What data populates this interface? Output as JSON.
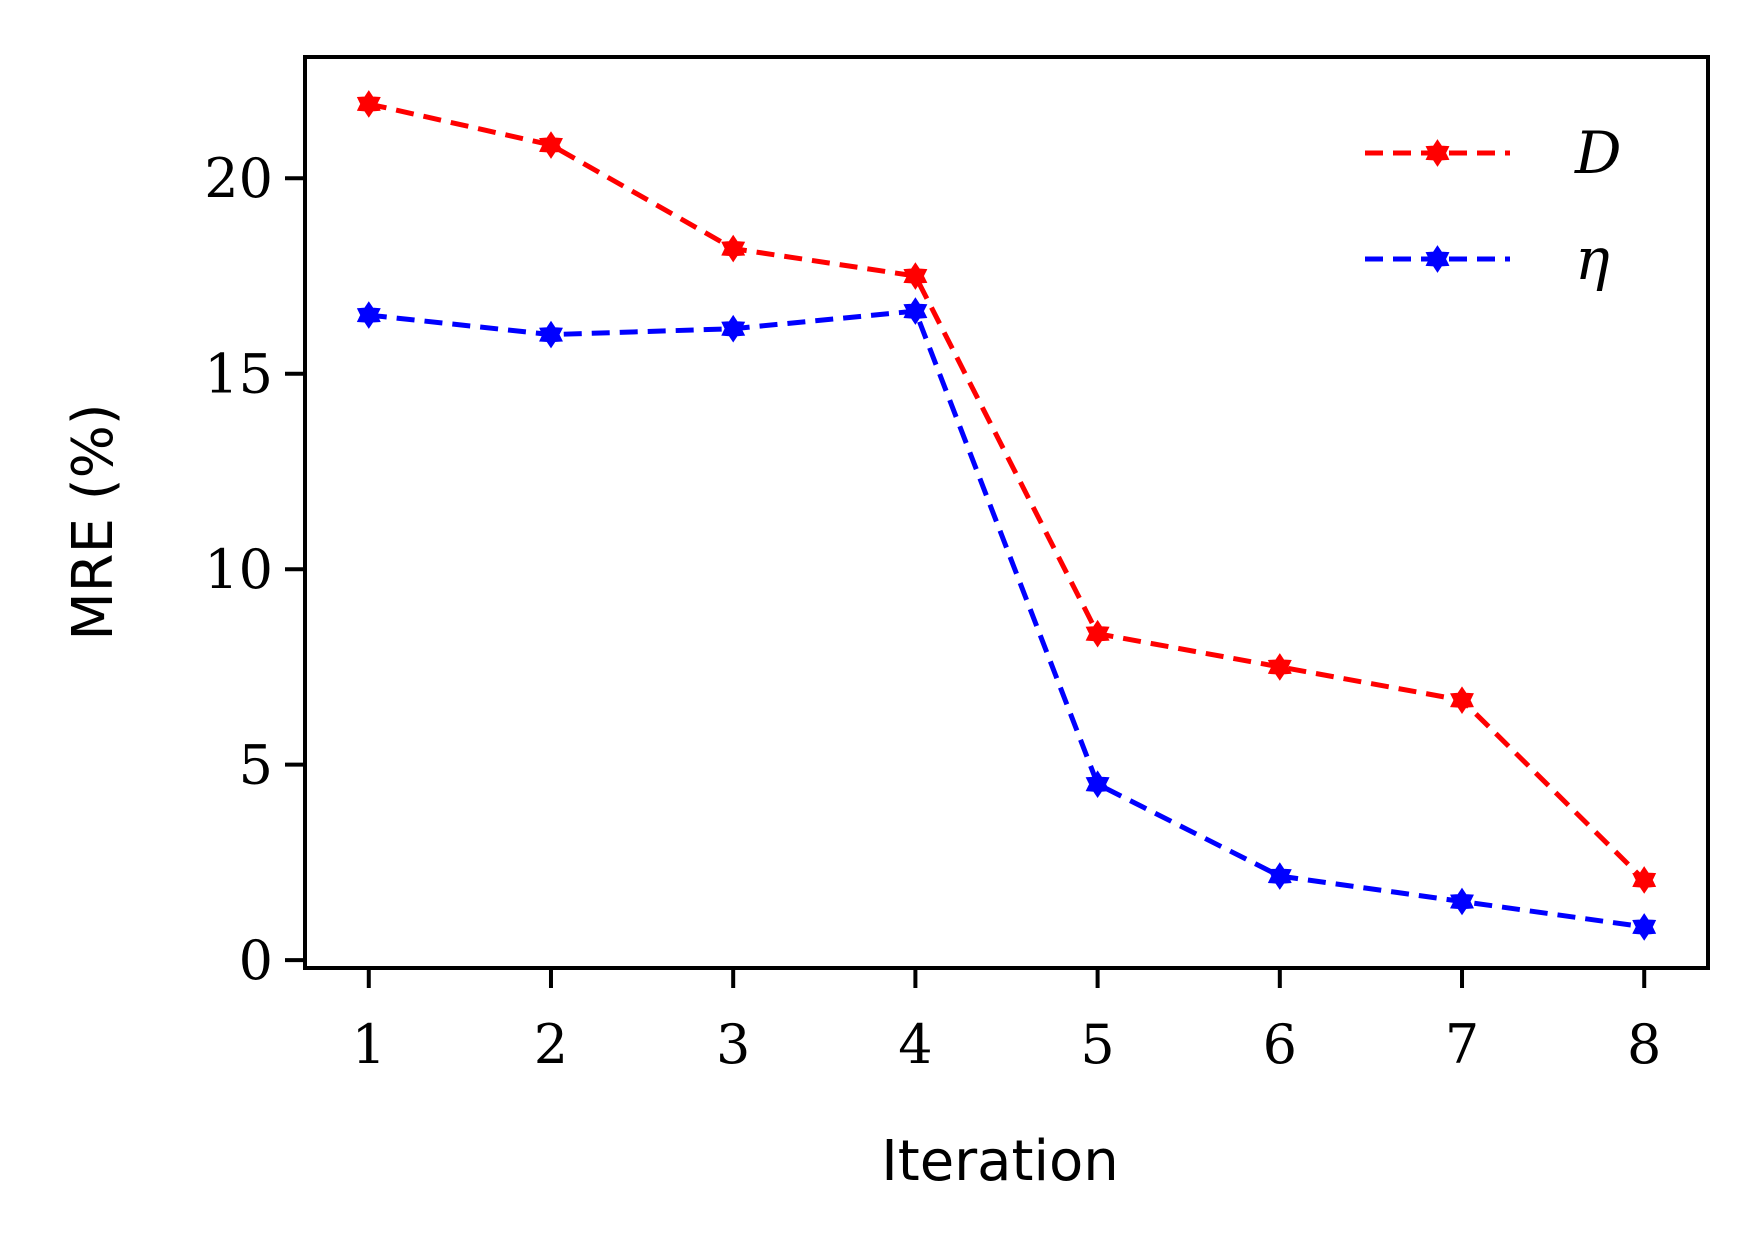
{
  "chart_data": {
    "type": "line",
    "xlabel": "Iteration",
    "ylabel": "MRE (%)",
    "x": [
      1,
      2,
      3,
      4,
      5,
      6,
      7,
      8
    ],
    "xticks": [
      "1",
      "2",
      "3",
      "4",
      "5",
      "6",
      "7",
      "8"
    ],
    "yticks": [
      "0",
      "5",
      "10",
      "15",
      "20"
    ],
    "ytick_values": [
      0,
      5,
      10,
      15,
      20
    ],
    "ylim": [
      -0.2,
      23.1
    ],
    "xlim": [
      0.65,
      8.35
    ],
    "grid": false,
    "legend_position": "top-right",
    "series": [
      {
        "name": "D",
        "color": "#ff0000",
        "line_style": "dashed",
        "marker": "star",
        "values": [
          21.9,
          20.85,
          18.2,
          17.5,
          8.35,
          7.5,
          6.65,
          2.05
        ]
      },
      {
        "name": "η",
        "color": "#0000ff",
        "line_style": "dashed",
        "marker": "star",
        "values": [
          16.5,
          16.0,
          16.15,
          16.6,
          4.5,
          2.15,
          1.5,
          0.85
        ]
      }
    ]
  }
}
